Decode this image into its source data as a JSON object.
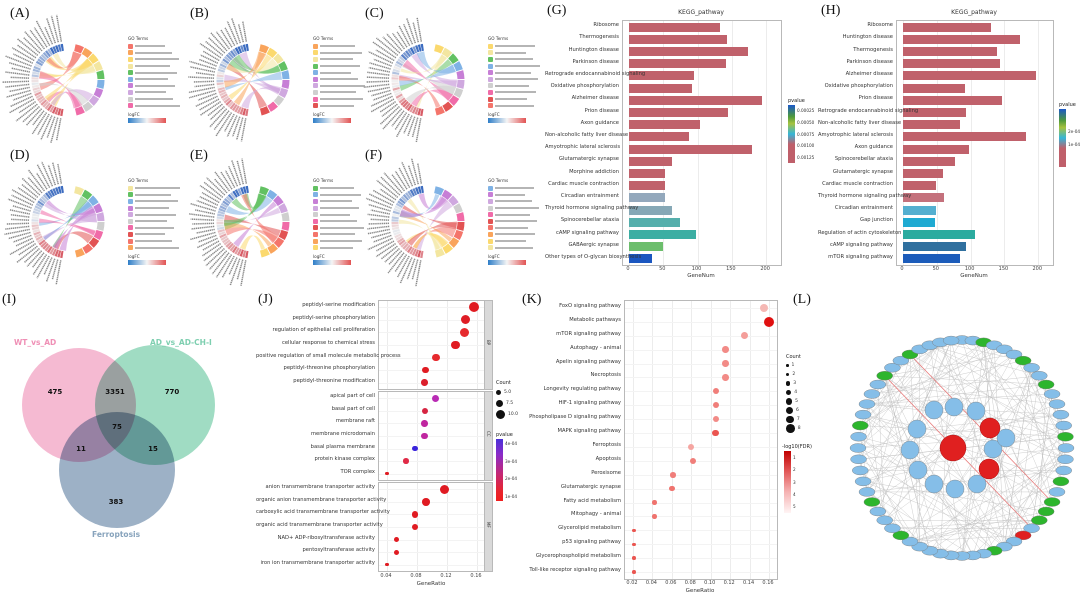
{
  "panels": {
    "A": "(A)",
    "B": "(B)",
    "C": "(C)",
    "D": "(D)",
    "E": "(E)",
    "F": "(F)",
    "G": "(G)",
    "H": "(H)",
    "I": "(I)",
    "J": "(J)",
    "K": "(K)",
    "L": "(L)"
  },
  "circos": {
    "legend_title": "GO Terms",
    "logfc_label": "logFC",
    "palette": [
      "#F4756B",
      "#F9A45B",
      "#FBD96E",
      "#F3E6A0",
      "#62C162",
      "#7FB2E5",
      "#C77FD6",
      "#CFA8DF",
      "#CFCFCF",
      "#F06BA8",
      "#E25353"
    ],
    "instances": [
      {
        "panel": "A",
        "seed": 7
      },
      {
        "panel": "B",
        "seed": 11
      },
      {
        "panel": "C",
        "seed": 15
      },
      {
        "panel": "D",
        "seed": 21
      },
      {
        "panel": "E",
        "seed": 27
      },
      {
        "panel": "F",
        "seed": 33
      }
    ]
  },
  "chart_data": [
    {
      "id": "G",
      "type": "bar",
      "title": "KEGG_pathway",
      "xlabel": "GeneNum",
      "xticks": [
        0,
        50,
        100,
        150,
        200
      ],
      "xmax": 210,
      "legend": {
        "title": "pvalue",
        "ticks": [
          "0.00025",
          "0.00050",
          "0.00075",
          "0.00100",
          "0.00125"
        ]
      },
      "bars": [
        {
          "label": "Ribosome",
          "value": 133,
          "color": "#C0616B"
        },
        {
          "label": "Thermogenesis",
          "value": 143,
          "color": "#C0616B"
        },
        {
          "label": "Huntington disease",
          "value": 174,
          "color": "#C0616B"
        },
        {
          "label": "Parkinson disease",
          "value": 142,
          "color": "#C0616B"
        },
        {
          "label": "Retrograde endocannabinoid signaling",
          "value": 95,
          "color": "#C0616B"
        },
        {
          "label": "Oxidative phosphorylation",
          "value": 92,
          "color": "#C0616B"
        },
        {
          "label": "Alzheimer disease",
          "value": 194,
          "color": "#C0616B"
        },
        {
          "label": "Prion disease",
          "value": 145,
          "color": "#C0616B"
        },
        {
          "label": "Axon guidance",
          "value": 103,
          "color": "#C0616B"
        },
        {
          "label": "Non-alcoholic fatty liver disease",
          "value": 87,
          "color": "#C0616B"
        },
        {
          "label": "Amyotrophic lateral sclerosis",
          "value": 179,
          "color": "#C0616B"
        },
        {
          "label": "Glutamatergic synapse",
          "value": 63,
          "color": "#C0616B"
        },
        {
          "label": "Morphine addiction",
          "value": 53,
          "color": "#C0616B"
        },
        {
          "label": "Cardiac muscle contraction",
          "value": 52,
          "color": "#C0616B"
        },
        {
          "label": "Circadian entrainment",
          "value": 53,
          "color": "#93A8BC"
        },
        {
          "label": "Thyroid hormone signaling pathway",
          "value": 63,
          "color": "#86A8B6"
        },
        {
          "label": "Spinocerebellar ataxia",
          "value": 74,
          "color": "#55AFAC"
        },
        {
          "label": "cAMP signaling pathway",
          "value": 97,
          "color": "#3BAEA3"
        },
        {
          "label": "GABAergic synapse",
          "value": 49,
          "color": "#6CBE6C"
        },
        {
          "label": "Other types of O-glycan biosynthesis",
          "value": 34,
          "color": "#1A56C0"
        }
      ]
    },
    {
      "id": "H",
      "type": "bar",
      "title": "KEGG_pathway",
      "xlabel": "GeneNum",
      "xticks": [
        0,
        50,
        100,
        150,
        200
      ],
      "xmax": 210,
      "legend": {
        "title": "pvalue",
        "ticks": [
          "2e-04",
          "1e-04"
        ]
      },
      "bars": [
        {
          "label": "Ribosome",
          "value": 130,
          "color": "#C0616B"
        },
        {
          "label": "Huntington disease",
          "value": 173,
          "color": "#C0616B"
        },
        {
          "label": "Thermogenesis",
          "value": 139,
          "color": "#C0616B"
        },
        {
          "label": "Parkinson disease",
          "value": 144,
          "color": "#C0616B"
        },
        {
          "label": "Alzheimer disease",
          "value": 197,
          "color": "#C0616B"
        },
        {
          "label": "Oxidative phosphorylation",
          "value": 92,
          "color": "#C0616B"
        },
        {
          "label": "Prion disease",
          "value": 147,
          "color": "#C0616B"
        },
        {
          "label": "Retrograde endocannabinoid signaling",
          "value": 93,
          "color": "#C0616B"
        },
        {
          "label": "Non-alcoholic fatty liver disease",
          "value": 85,
          "color": "#C0616B"
        },
        {
          "label": "Amyotrophic lateral sclerosis",
          "value": 182,
          "color": "#C0616B"
        },
        {
          "label": "Axon guidance",
          "value": 97,
          "color": "#C0616B"
        },
        {
          "label": "Spinocerebellar ataxia",
          "value": 77,
          "color": "#C0616B"
        },
        {
          "label": "Glutamatergic synapse",
          "value": 59,
          "color": "#C0616B"
        },
        {
          "label": "Cardiac muscle contraction",
          "value": 49,
          "color": "#C0616B"
        },
        {
          "label": "Thyroid hormone signaling pathway",
          "value": 61,
          "color": "#C4717C"
        },
        {
          "label": "Circadian entrainment",
          "value": 49,
          "color": "#54AFD0"
        },
        {
          "label": "Gap junction",
          "value": 48,
          "color": "#1FAAD2"
        },
        {
          "label": "Regulation of actin cytoskeleton",
          "value": 106,
          "color": "#2BAB9F"
        },
        {
          "label": "cAMP signaling pathway",
          "value": 93,
          "color": "#30709F"
        },
        {
          "label": "mTOR signaling pathway",
          "value": 85,
          "color": "#1C5CBA"
        }
      ]
    },
    {
      "id": "I",
      "type": "venn",
      "sets": [
        {
          "name": "WT_vs_AD",
          "color": "#F1A0C0",
          "label_color": "#EF8FB5"
        },
        {
          "name": "AD_vs_AD-CH-I",
          "color": "#7CCFAC",
          "label_color": "#7ECFB0"
        },
        {
          "name": "Ferroptosis",
          "color": "#7793B0",
          "label_color": "#87A3BC"
        }
      ],
      "counts": {
        "wt_only": "475",
        "wt_ad": "3351",
        "ad_only": "770",
        "wt_fer": "11",
        "all": "75",
        "ad_fer": "15",
        "fer_only": "383"
      }
    },
    {
      "id": "J",
      "type": "dot-facet",
      "xlabel": "GeneRatio",
      "xticks": [
        "0.04",
        "0.08",
        "0.12",
        "0.16"
      ],
      "count_legend": {
        "title": "Count",
        "items": [
          {
            "label": "5.0",
            "size": 5
          },
          {
            "label": "7.5",
            "size": 7
          },
          {
            "label": "10.0",
            "size": 9
          }
        ]
      },
      "pvalue_legend": {
        "title": "pvalue",
        "ticks": [
          "4e-04",
          "3e-04",
          "2e-04",
          "1e-04"
        ]
      },
      "facets": [
        {
          "name": "BP",
          "rows": [
            {
              "label": "peptidyl-serine modification",
              "x": 0.156,
              "size": 10,
              "color": "#E01B22"
            },
            {
              "label": "peptidyl-serine phosphorylation",
              "x": 0.145,
              "size": 9,
              "color": "#DF1E26"
            },
            {
              "label": "regulation of epithelial cell proliferation",
              "x": 0.143,
              "size": 9,
              "color": "#E62A2E"
            },
            {
              "label": "cellular response to chemical stress",
              "x": 0.131,
              "size": 8.5,
              "color": "#E01B22"
            },
            {
              "label": "positive regulation of small molecule metabolic process",
              "x": 0.105,
              "size": 7.5,
              "color": "#E62A2E"
            },
            {
              "label": "peptidyl-threonine phosphorylation",
              "x": 0.091,
              "size": 6.5,
              "color": "#E01B22"
            },
            {
              "label": "peptidyl-threonine modification",
              "x": 0.09,
              "size": 6.5,
              "color": "#DB1F2C"
            }
          ]
        },
        {
          "name": "CC",
          "rows": [
            {
              "label": "apical part of cell",
              "x": 0.104,
              "size": 7,
              "color": "#B92BB4"
            },
            {
              "label": "basal part of cell",
              "x": 0.09,
              "size": 6,
              "color": "#D62441"
            },
            {
              "label": "membrane raft",
              "x": 0.09,
              "size": 6.5,
              "color": "#C026A0"
            },
            {
              "label": "membrane microdomain",
              "x": 0.09,
              "size": 6.5,
              "color": "#C026A0"
            },
            {
              "label": "basal plasma membrane",
              "x": 0.077,
              "size": 5.5,
              "color": "#3A24DC"
            },
            {
              "label": "protein kinase complex",
              "x": 0.065,
              "size": 5.5,
              "color": "#E02A47"
            },
            {
              "label": "TOR complex",
              "x": 0.04,
              "size": 3.5,
              "color": "#E01B22"
            }
          ]
        },
        {
          "name": "MF",
          "rows": [
            {
              "label": "anion transmembrane transporter activity",
              "x": 0.117,
              "size": 9,
              "color": "#E01B22"
            },
            {
              "label": "organic anion transmembrane transporter activity",
              "x": 0.092,
              "size": 7.5,
              "color": "#E01B22"
            },
            {
              "label": "carboxylic acid transmembrane transporter activity",
              "x": 0.077,
              "size": 6.5,
              "color": "#E01B22"
            },
            {
              "label": "organic acid transmembrane transporter activity",
              "x": 0.077,
              "size": 6.5,
              "color": "#E01B22"
            },
            {
              "label": "NAD+ ADP-ribosyltransferase activity",
              "x": 0.053,
              "size": 5,
              "color": "#E01B22"
            },
            {
              "label": "pentosyltransferase activity",
              "x": 0.052,
              "size": 5,
              "color": "#E01B22"
            },
            {
              "label": "iron ion transmembrane transporter activity",
              "x": 0.04,
              "size": 3.5,
              "color": "#E01B22"
            }
          ]
        }
      ]
    },
    {
      "id": "K",
      "type": "dot",
      "xlabel": "GeneRatio",
      "xticks": [
        "0.02",
        "0.04",
        "0.06",
        "0.08",
        "0.10",
        "0.12",
        "0.14",
        "0.16"
      ],
      "count_legend": {
        "title": "Count",
        "items": [
          "1",
          "2",
          "3",
          "4",
          "5",
          "6",
          "7",
          "8"
        ]
      },
      "fdr_legend": {
        "title": "-log10(FDR)",
        "ticks": [
          "1",
          "2",
          "3",
          "4",
          "5"
        ]
      },
      "rows": [
        {
          "label": "FoxO signaling pathway",
          "x": 0.155,
          "size": 8,
          "color": "#F5B8B4"
        },
        {
          "label": "Metabolic pathways",
          "x": 0.16,
          "size": 10,
          "color": "#E01010"
        },
        {
          "label": "mTOR signaling pathway",
          "x": 0.135,
          "size": 7,
          "color": "#F49E9A"
        },
        {
          "label": "Autophagy - animal",
          "x": 0.115,
          "size": 6.5,
          "color": "#F28B87"
        },
        {
          "label": "Apelin signaling pathway",
          "x": 0.115,
          "size": 6.5,
          "color": "#F28B87"
        },
        {
          "label": "Necroptosis",
          "x": 0.115,
          "size": 6.5,
          "color": "#F28B87"
        },
        {
          "label": "Longevity regulating pathway",
          "x": 0.105,
          "size": 6,
          "color": "#F07E7A"
        },
        {
          "label": "HIF-1 signaling pathway",
          "x": 0.105,
          "size": 6,
          "color": "#F07E7A"
        },
        {
          "label": "Phospholipase D signaling pathway",
          "x": 0.105,
          "size": 6,
          "color": "#F28B87"
        },
        {
          "label": "MAPK signaling pathway",
          "x": 0.105,
          "size": 6.5,
          "color": "#EA5550"
        },
        {
          "label": "Ferroptosis",
          "x": 0.08,
          "size": 6,
          "color": "#F5A5A1"
        },
        {
          "label": "Apoptosis",
          "x": 0.082,
          "size": 6.5,
          "color": "#F07E7A"
        },
        {
          "label": "Peroxisome",
          "x": 0.061,
          "size": 5.5,
          "color": "#F07E7A"
        },
        {
          "label": "Glutamatergic synapse",
          "x": 0.06,
          "size": 5.5,
          "color": "#EF736E"
        },
        {
          "label": "Fatty acid metabolism",
          "x": 0.042,
          "size": 4.5,
          "color": "#EF736E"
        },
        {
          "label": "Mitophagy - animal",
          "x": 0.042,
          "size": 4.5,
          "color": "#EF736E"
        },
        {
          "label": "Glycerolipid metabolism",
          "x": 0.021,
          "size": 3.5,
          "color": "#EA5550"
        },
        {
          "label": "p53 signaling pathway",
          "x": 0.021,
          "size": 3.5,
          "color": "#EA5550"
        },
        {
          "label": "Glycerophospholipid metabolism",
          "x": 0.021,
          "size": 3.5,
          "color": "#EA5550"
        },
        {
          "label": "Toll-like receptor signaling pathway",
          "x": 0.021,
          "size": 3.5,
          "color": "#EA5550"
        }
      ]
    }
  ],
  "network": {
    "outer_count": 60,
    "green_indices": [
      2,
      6,
      9,
      14,
      18,
      20,
      21,
      22,
      27,
      36,
      40,
      47,
      52,
      55
    ],
    "red_index": 24,
    "colors": {
      "blue": "#85BEE8",
      "green": "#2DB52D",
      "red": "#E02020",
      "edge": "#BDBDBD",
      "red_edge": "#E87C7C"
    }
  }
}
